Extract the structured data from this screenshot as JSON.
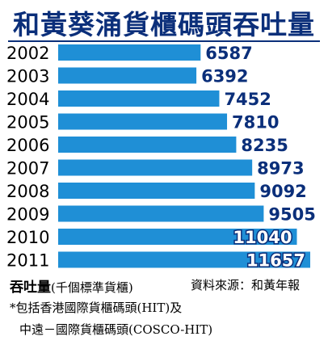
{
  "title": "和黃葵涌貨櫃碼頭吞吐量",
  "footer": {
    "unit_label": "吞吐量",
    "unit": "(千個標準貨櫃)",
    "source": "資料來源：和黃年報",
    "note_line1": "*包括香港國際貨櫃碼頭(HIT)及",
    "note_line2": "中遠－國際貨櫃碼頭(COSCO-HIT)"
  },
  "colors": {
    "bar": "#1f8fd6",
    "title": "#0b2f7a",
    "label_inside": "#ffffff",
    "label_outside": "#0b2f7a"
  },
  "chart_data": {
    "type": "bar",
    "orientation": "horizontal",
    "categories": [
      "2002",
      "2003",
      "2004",
      "2005",
      "2006",
      "2007",
      "2008",
      "2009",
      "2010",
      "2011"
    ],
    "values": [
      6587,
      6392,
      7452,
      7810,
      8235,
      8973,
      9092,
      9505,
      11040,
      11657
    ],
    "data_labels": [
      "6587",
      "6392",
      "7452",
      "7810",
      "8235",
      "8973",
      "9092",
      "9505",
      "11040",
      "11657"
    ],
    "title": "和黃葵涌貨櫃碼頭吞吐量",
    "xlabel": "吞吐量(千個標準貨櫃)",
    "ylabel": "",
    "xlim": [
      0,
      11657
    ]
  }
}
